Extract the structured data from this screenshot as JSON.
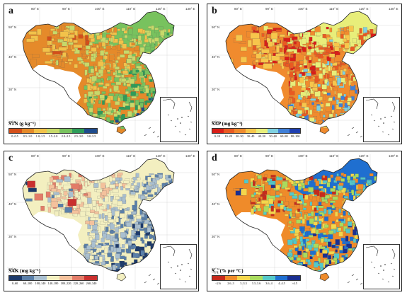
{
  "panels": [
    {
      "label": "a",
      "legend_title": "STN (g kg⁻¹)",
      "legend_ticks": [
        "0–0.5",
        "0.5–1.0",
        "1.0–1.5",
        "1.5–2.0",
        "2.0–2.5",
        "2.5–3.0",
        "3.0–3.5"
      ],
      "colors": [
        "#d44f1a",
        "#e58a2a",
        "#f2c24a",
        "#c7d96a",
        "#78c25e",
        "#2e9c5a",
        "#1e4b8c"
      ]
    },
    {
      "label": "b",
      "legend_title": "SAP (mg kg⁻¹)",
      "legend_ticks": [
        "0–10",
        "10–20",
        "20–30",
        "30–40",
        "40–50",
        "50–60",
        "60–80",
        "80–100"
      ],
      "colors": [
        "#d91e18",
        "#e95a22",
        "#f08b2e",
        "#f7c64c",
        "#e8ee7a",
        "#7fd0e0",
        "#3f7fd7",
        "#1f3fb0"
      ]
    },
    {
      "label": "c",
      "legend_title": "SAK (mg kg⁻¹)",
      "legend_ticks": [
        "0–60",
        "60–100",
        "100–140",
        "140–180",
        "180–220",
        "220–260",
        "260–340"
      ],
      "colors": [
        "#1d3a6b",
        "#5a7fa8",
        "#a9bfcf",
        "#f3efc0",
        "#f4c19c",
        "#e27c68",
        "#c9302f"
      ]
    },
    {
      "label": "d",
      "legend_title": "S₁.₁ (% per °C)",
      "legend_ticks": [
        "<2.6",
        "2.6–3",
        "3–3.3",
        "3.3–3.6",
        "3.6–4",
        "4–4.5",
        ">4.5"
      ],
      "colors": [
        "#c62a1c",
        "#ef8b2a",
        "#f4d64c",
        "#a9db5e",
        "#55c8c8",
        "#1f6fd0",
        "#1b2f90"
      ]
    }
  ],
  "longitude_labels": [
    "80° E",
    "90° E",
    "100° E",
    "110° E",
    "120° E",
    "130° E"
  ],
  "latitude_labels": [
    "50° N",
    "40° N",
    "30° N",
    "20° N"
  ]
}
